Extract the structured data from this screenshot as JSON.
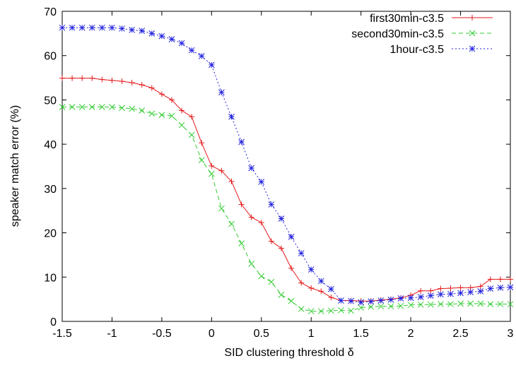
{
  "chart_data": {
    "type": "line",
    "title": "",
    "xlabel": "SID clustering threshold δ",
    "ylabel": "speaker match error (%)",
    "xlim": [
      -1.5,
      3
    ],
    "ylim": [
      0,
      70
    ],
    "xticks": [
      -1.5,
      -1,
      -0.5,
      0,
      0.5,
      1,
      1.5,
      2,
      2.5,
      3
    ],
    "xtick_labels": [
      "-1.5",
      "-1",
      "-0.5",
      "0",
      "0.5",
      "1",
      "1.5",
      "2",
      "2.5",
      "3"
    ],
    "yticks": [
      0,
      10,
      20,
      30,
      40,
      50,
      60,
      70
    ],
    "ytick_labels": [
      "0",
      "10",
      "20",
      "30",
      "40",
      "50",
      "60",
      "70"
    ],
    "grid": false,
    "legend_position": "top-right",
    "x": [
      -1.5,
      -1.4,
      -1.3,
      -1.2,
      -1.1,
      -1.0,
      -0.9,
      -0.8,
      -0.7,
      -0.6,
      -0.5,
      -0.4,
      -0.3,
      -0.2,
      -0.1,
      0.0,
      0.1,
      0.2,
      0.3,
      0.4,
      0.5,
      0.6,
      0.7,
      0.8,
      0.9,
      1.0,
      1.1,
      1.2,
      1.3,
      1.4,
      1.5,
      1.6,
      1.7,
      1.8,
      1.9,
      2.0,
      2.1,
      2.2,
      2.3,
      2.4,
      2.5,
      2.6,
      2.7,
      2.8,
      2.9,
      3.0
    ],
    "series": [
      {
        "name": "first30min-c3.5",
        "color": "#e41a1c",
        "dash": "",
        "marker": "plus",
        "values": [
          54.9,
          54.9,
          54.9,
          54.9,
          54.6,
          54.4,
          54.2,
          53.9,
          53.4,
          52.7,
          51.3,
          50.0,
          47.6,
          46.2,
          40.3,
          35.1,
          34.0,
          31.6,
          26.4,
          23.5,
          22.3,
          18.1,
          16.5,
          12.0,
          8.7,
          7.5,
          6.8,
          5.4,
          4.7,
          4.7,
          4.6,
          4.6,
          4.8,
          5.0,
          5.3,
          5.9,
          6.9,
          6.9,
          7.4,
          7.5,
          7.6,
          7.6,
          7.9,
          9.5,
          9.5,
          9.5
        ]
      },
      {
        "name": "second30min-c3.5",
        "color": "#33cc33",
        "dash": "6,4",
        "marker": "cross",
        "values": [
          48.4,
          48.4,
          48.4,
          48.4,
          48.4,
          48.4,
          48.2,
          48.0,
          47.6,
          46.9,
          46.6,
          46.4,
          44.3,
          42.1,
          36.4,
          33.3,
          25.5,
          22.0,
          17.6,
          13.0,
          10.2,
          8.9,
          6.0,
          4.6,
          2.8,
          2.3,
          2.3,
          2.4,
          2.5,
          2.4,
          3.1,
          3.3,
          3.4,
          3.4,
          3.5,
          3.7,
          3.8,
          3.8,
          3.9,
          3.9,
          4.0,
          4.0,
          4.0,
          3.9,
          3.9,
          3.9
        ]
      },
      {
        "name": "1hour-c3.5",
        "color": "#2222dd",
        "dash": "2,3",
        "marker": "star",
        "values": [
          66.3,
          66.3,
          66.3,
          66.3,
          66.3,
          66.3,
          66.1,
          65.8,
          65.6,
          65.0,
          64.4,
          63.7,
          62.8,
          61.2,
          59.9,
          57.9,
          51.7,
          46.2,
          40.5,
          34.6,
          31.5,
          26.4,
          23.2,
          19.1,
          15.4,
          11.7,
          9.1,
          7.3,
          4.7,
          4.6,
          4.3,
          4.5,
          4.7,
          4.9,
          5.2,
          5.3,
          5.5,
          5.8,
          6.1,
          6.2,
          6.4,
          6.6,
          6.8,
          7.4,
          7.6,
          7.7
        ]
      }
    ]
  }
}
